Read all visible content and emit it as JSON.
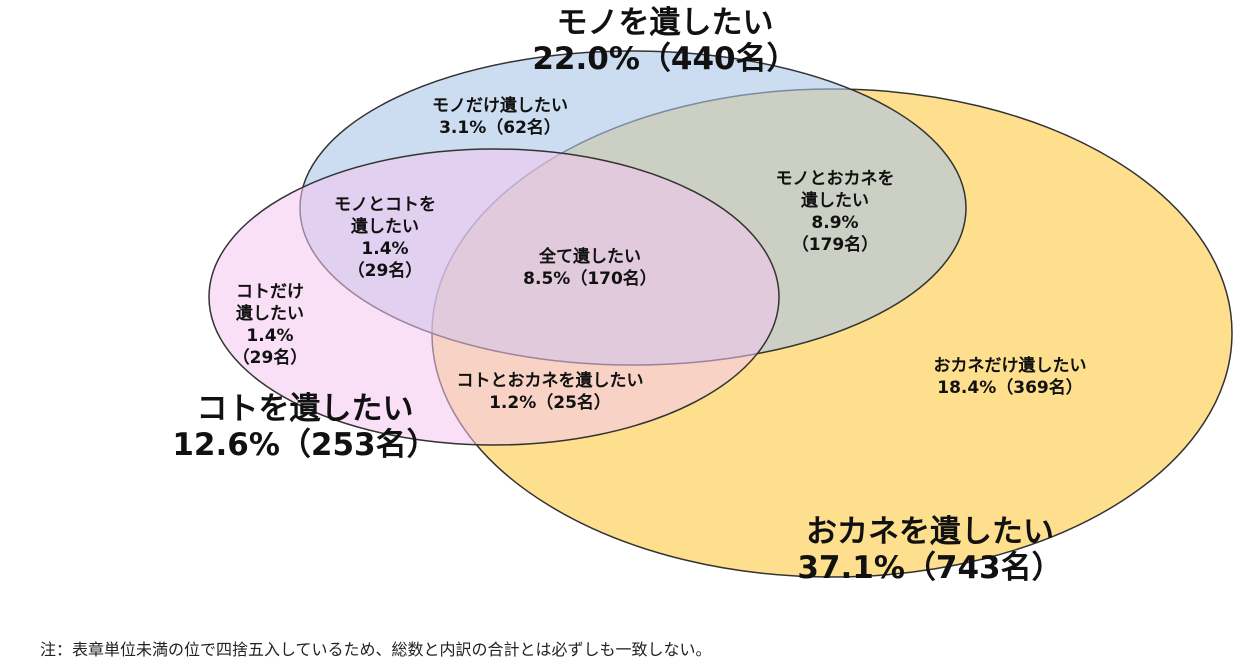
{
  "sets": {
    "mono": {
      "name": "モノを遺したい",
      "share": "22.0%（440名）",
      "fill": "#b8cdea"
    },
    "koto": {
      "name": "コトを遺したい",
      "share": "12.6%（253名）",
      "fill": "#f6d3f4"
    },
    "okane": {
      "name": "おカネを遺したい",
      "share": "37.1%（743名）",
      "fill": "#fdd97a"
    }
  },
  "regions": {
    "mono_only": {
      "lines": [
        "モノだけ遺したい",
        "3.1%（62名）"
      ]
    },
    "mono_koto": {
      "lines": [
        "モノとコトを",
        "遺したい",
        "1.4%",
        "（29名）"
      ]
    },
    "all": {
      "lines": [
        "全て遺したい",
        "8.5%（170名）"
      ]
    },
    "mono_okane": {
      "lines": [
        "モノとおカネを",
        "遺したい",
        "8.9%",
        "（179名）"
      ]
    },
    "koto_only": {
      "lines": [
        "コトだけ",
        "遺したい",
        "1.4%",
        "（29名）"
      ]
    },
    "koto_okane": {
      "lines": [
        "コトとおカネを遺したい",
        "1.2%（25名）"
      ]
    },
    "okane_only": {
      "lines": [
        "おカネだけ遺したい",
        "18.4%（369名）"
      ]
    }
  },
  "note": "注：表章単位未満の位で四捨五入しているため、総数と内訳の合計とは必ずしも一致しない。"
}
